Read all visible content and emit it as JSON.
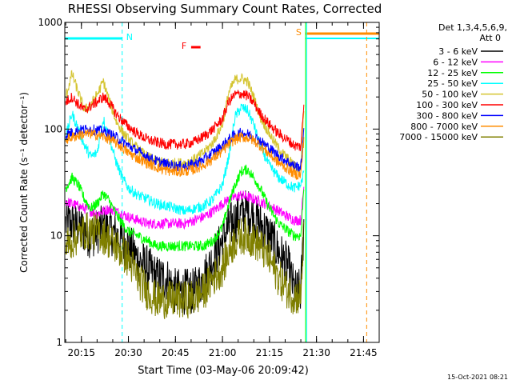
{
  "chart_data": {
    "type": "line",
    "title": "RHESSI Observing Summary Count Rates, Corrected",
    "xlabel": "Start Time (03-May-06 20:09:42)",
    "ylabel": "Corrected Count Rate (s⁻¹ detector⁻¹)",
    "yscale": "log",
    "ylim": [
      1,
      1000
    ],
    "xlim": [
      "20:09:42",
      "21:50:00"
    ],
    "x_ticks": [
      "20:15",
      "20:30",
      "20:45",
      "21:00",
      "21:15",
      "21:30",
      "21:45"
    ],
    "y_ticks": [
      "1",
      "10",
      "100",
      "1000"
    ],
    "legend_header_1": "Det 1,3,4,5,6,9,",
    "legend_header_2": "Att 0",
    "legend_position": "right",
    "timestamp": "15-Oct-2021 08:21",
    "flags": [
      {
        "label": "N",
        "color": "#00ffff",
        "start": "20:09:42",
        "end": "20:28:00"
      },
      {
        "label": "F",
        "color": "#ff0000",
        "start": "20:50:00",
        "end": "20:53:00"
      },
      {
        "label": "S",
        "color": "#ff8c00",
        "start": "21:26:30",
        "end": "21:50:00"
      }
    ],
    "x": [
      "20:10",
      "20:12",
      "20:14",
      "20:16",
      "20:18",
      "20:20",
      "20:22",
      "20:24",
      "20:26",
      "20:28",
      "20:30",
      "20:33",
      "20:36",
      "20:39",
      "20:42",
      "20:45",
      "20:48",
      "20:51",
      "20:54",
      "20:57",
      "21:00",
      "21:02",
      "21:04",
      "21:06",
      "21:08",
      "21:10",
      "21:12",
      "21:15",
      "21:18",
      "21:21",
      "21:23",
      "21:25",
      "21:26"
    ],
    "series": [
      {
        "name": "3 - 6 keV",
        "color": "#000000",
        "values": [
          13,
          13,
          12,
          11,
          10,
          11,
          12,
          11,
          10,
          9,
          8,
          6,
          5,
          4,
          4,
          3,
          3,
          3,
          4,
          6,
          9,
          12,
          14,
          16,
          17,
          15,
          13,
          10,
          7,
          5,
          3,
          3,
          14
        ]
      },
      {
        "name": "6 - 12 keV",
        "color": "#ff00ff",
        "values": [
          21,
          20,
          19,
          18,
          17,
          16,
          17,
          18,
          17,
          16,
          15,
          14,
          13,
          13,
          13,
          13,
          13,
          14,
          15,
          17,
          20,
          22,
          23,
          24,
          23,
          22,
          21,
          19,
          17,
          15,
          14,
          14,
          30
        ]
      },
      {
        "name": "12 - 25 keV",
        "color": "#00ff00",
        "values": [
          28,
          35,
          30,
          22,
          18,
          20,
          25,
          21,
          16,
          13,
          11,
          10,
          9,
          8,
          8,
          8,
          8,
          8,
          8,
          9,
          12,
          20,
          30,
          40,
          42,
          35,
          28,
          18,
          13,
          11,
          10,
          10,
          30
        ]
      },
      {
        "name": "25 - 50 keV",
        "color": "#00ffff",
        "values": [
          85,
          140,
          100,
          70,
          55,
          60,
          125,
          80,
          50,
          35,
          28,
          24,
          22,
          20,
          19,
          18,
          17,
          18,
          19,
          22,
          30,
          55,
          130,
          160,
          150,
          110,
          70,
          45,
          35,
          30,
          28,
          30,
          40
        ]
      },
      {
        "name": "50 - 100 keV",
        "color": "#d4c430",
        "values": [
          200,
          330,
          220,
          150,
          170,
          210,
          280,
          180,
          120,
          95,
          80,
          65,
          55,
          50,
          48,
          48,
          48,
          52,
          60,
          75,
          110,
          220,
          290,
          300,
          280,
          200,
          130,
          90,
          65,
          52,
          45,
          42,
          160
        ]
      },
      {
        "name": "100 - 300 keV",
        "color": "#ff0000",
        "values": [
          180,
          200,
          170,
          150,
          165,
          180,
          200,
          175,
          140,
          120,
          105,
          90,
          80,
          75,
          72,
          72,
          72,
          76,
          85,
          100,
          125,
          180,
          210,
          215,
          205,
          175,
          140,
          110,
          90,
          78,
          70,
          68,
          180
        ]
      },
      {
        "name": "300 - 800 keV",
        "color": "#0000ff",
        "values": [
          88,
          93,
          97,
          99,
          99,
          98,
          95,
          90,
          84,
          77,
          70,
          62,
          55,
          50,
          47,
          45,
          45,
          47,
          52,
          60,
          70,
          80,
          88,
          92,
          90,
          85,
          78,
          66,
          56,
          49,
          45,
          44,
          95
        ]
      },
      {
        "name": "800 - 7000 keV",
        "color": "#ff8c00",
        "values": [
          80,
          84,
          87,
          90,
          90,
          88,
          85,
          80,
          74,
          67,
          60,
          53,
          48,
          44,
          41,
          40,
          40,
          42,
          46,
          53,
          62,
          72,
          80,
          84,
          83,
          78,
          70,
          58,
          48,
          42,
          38,
          37,
          85
        ]
      },
      {
        "name": "7000 - 15000 keV",
        "color": "#808000",
        "values": [
          8,
          9,
          10,
          11,
          11,
          11,
          10,
          9,
          8,
          7,
          6,
          4,
          3,
          2.5,
          2.5,
          2.5,
          2.5,
          2.6,
          3,
          4,
          5,
          7,
          9,
          10,
          10,
          9,
          8,
          6,
          4,
          3,
          2.7,
          2.7,
          13
        ]
      }
    ]
  }
}
